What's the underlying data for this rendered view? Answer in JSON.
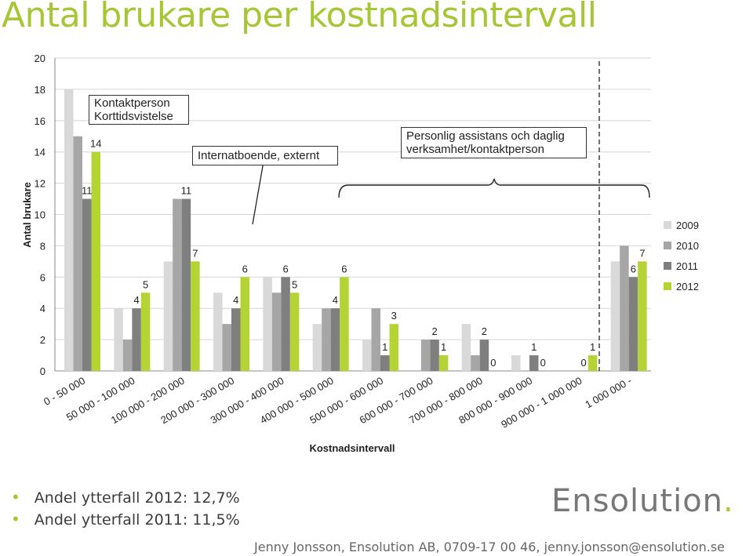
{
  "slide": {
    "title": "Antal brukare per kostnadsintervall",
    "bullets": [
      "Andel ytterfall 2012: 12,7%",
      "Andel ytterfall 2011: 11,5%"
    ],
    "logo_text": "Ensolution",
    "footer": "Jenny Jonsson, Ensolution AB, 0709-17 00 46, jenny.jonsson@ensolution.se"
  },
  "annotations": {
    "kontaktperson_line1": "Kontaktperson",
    "kontaktperson_line2": "Korttidsvistelse",
    "internat": "Internatboende, externt",
    "personlig_line1": "Personlig assistans och daglig",
    "personlig_line2": "verksamhet/kontaktperson"
  },
  "colors": {
    "accent": "#a6c636",
    "s2009": "#d9d9d9",
    "s2010": "#a6a6a6",
    "s2011": "#7f7f7f",
    "s2012": "#b5d334"
  },
  "chart_data": {
    "type": "bar",
    "xlabel": "Kostnadsintervall",
    "ylabel": "Antal brukare",
    "ylim": [
      0,
      20
    ],
    "yticks": [
      0,
      2,
      4,
      6,
      8,
      10,
      12,
      14,
      16,
      18,
      20
    ],
    "grid": true,
    "legend_position": "right",
    "categories": [
      "0 - 50 000",
      "50 000 - 100 000",
      "100 000 - 200 000",
      "200 000 - 300 000",
      "300 000 - 400 000",
      "400 000 - 500 000",
      "500 000 - 600 000",
      "600 000 - 700 000",
      "700 000 - 800 000",
      "800 000 - 900 000",
      "900 000 - 1 000 000",
      "1 000 000 -"
    ],
    "series": [
      {
        "name": "2009",
        "values": [
          18,
          4,
          7,
          5,
          6,
          3,
          2,
          0,
          3,
          1,
          0,
          7
        ]
      },
      {
        "name": "2010",
        "values": [
          15,
          2,
          11,
          3,
          5,
          4,
          4,
          2,
          1,
          0,
          0,
          8
        ]
      },
      {
        "name": "2011",
        "values": [
          11,
          4,
          11,
          4,
          6,
          4,
          1,
          2,
          2,
          1,
          0,
          6
        ]
      },
      {
        "name": "2012",
        "values": [
          14,
          5,
          7,
          6,
          5,
          6,
          3,
          1,
          0,
          0,
          1,
          7
        ]
      }
    ],
    "data_labels": [
      {
        "category": 0,
        "series": 2,
        "text": "11"
      },
      {
        "category": 0,
        "series": 3,
        "text": "14"
      },
      {
        "category": 1,
        "series": 2,
        "text": "4"
      },
      {
        "category": 1,
        "series": 3,
        "text": "5"
      },
      {
        "category": 2,
        "series": 2,
        "text": "11"
      },
      {
        "category": 2,
        "series": 3,
        "text": "7"
      },
      {
        "category": 3,
        "series": 2,
        "text": "4"
      },
      {
        "category": 3,
        "series": 3,
        "text": "6"
      },
      {
        "category": 4,
        "series": 2,
        "text": "6"
      },
      {
        "category": 4,
        "series": 3,
        "text": "5"
      },
      {
        "category": 5,
        "series": 2,
        "text": "4"
      },
      {
        "category": 5,
        "series": 3,
        "text": "6"
      },
      {
        "category": 6,
        "series": 2,
        "text": "1"
      },
      {
        "category": 6,
        "series": 3,
        "text": "3"
      },
      {
        "category": 7,
        "series": 2,
        "text": "2"
      },
      {
        "category": 7,
        "series": 3,
        "text": "1"
      },
      {
        "category": 8,
        "series": 2,
        "text": "2"
      },
      {
        "category": 8,
        "series": 3,
        "text": "0"
      },
      {
        "category": 9,
        "series": 2,
        "text": "1"
      },
      {
        "category": 9,
        "series": 3,
        "text": "0"
      },
      {
        "category": 10,
        "series": 2,
        "text": "0"
      },
      {
        "category": 10,
        "series": 3,
        "text": "1"
      },
      {
        "category": 11,
        "series": 2,
        "text": "6"
      },
      {
        "category": 11,
        "series": 3,
        "text": "7"
      }
    ]
  }
}
